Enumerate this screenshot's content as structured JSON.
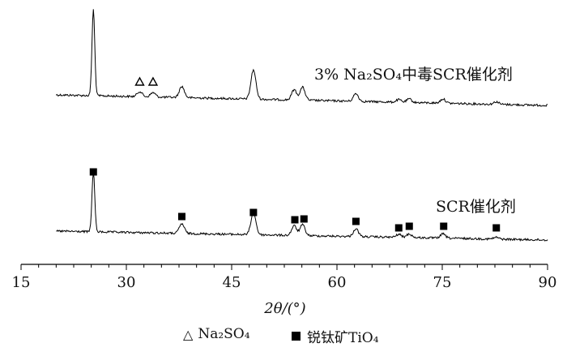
{
  "chart_data": {
    "type": "line",
    "xlabel": "2θ/(°)",
    "xlim": [
      15,
      90
    ],
    "xticks": [
      15,
      30,
      45,
      60,
      75,
      90
    ],
    "grid": false,
    "series": [
      {
        "name": "3% Na₂SO₄中毒SCR催化剂",
        "peaks": [
          {
            "x": 25.3,
            "h": 1.0
          },
          {
            "x": 31.9,
            "h": 0.06
          },
          {
            "x": 33.8,
            "h": 0.05
          },
          {
            "x": 37.9,
            "h": 0.13
          },
          {
            "x": 48.1,
            "h": 0.34
          },
          {
            "x": 53.9,
            "h": 0.12
          },
          {
            "x": 55.1,
            "h": 0.15
          },
          {
            "x": 62.7,
            "h": 0.09
          },
          {
            "x": 68.8,
            "h": 0.03
          },
          {
            "x": 70.3,
            "h": 0.04
          },
          {
            "x": 75.1,
            "h": 0.05
          },
          {
            "x": 82.7,
            "h": 0.03
          }
        ]
      },
      {
        "name": "SCR催化剂",
        "peaks": [
          {
            "x": 25.3,
            "h": 1.0
          },
          {
            "x": 37.9,
            "h": 0.16
          },
          {
            "x": 48.1,
            "h": 0.37
          },
          {
            "x": 53.9,
            "h": 0.16
          },
          {
            "x": 55.1,
            "h": 0.18
          },
          {
            "x": 62.7,
            "h": 0.13
          },
          {
            "x": 68.8,
            "h": 0.05
          },
          {
            "x": 70.3,
            "h": 0.06
          },
          {
            "x": 75.1,
            "h": 0.07
          },
          {
            "x": 82.7,
            "h": 0.03
          }
        ]
      }
    ],
    "triangle_markers_x": [
      31.9,
      33.8
    ],
    "square_markers_x": [
      25.3,
      37.9,
      48.1,
      54.0,
      55.3,
      62.7,
      68.8,
      70.3,
      75.2,
      82.7
    ],
    "legend": {
      "items": [
        {
          "marker": "triangle",
          "label": "Na₂SO₄"
        },
        {
          "marker": "square",
          "label": "锐钛矿TiO₄"
        }
      ],
      "position": "bottom-center"
    }
  }
}
